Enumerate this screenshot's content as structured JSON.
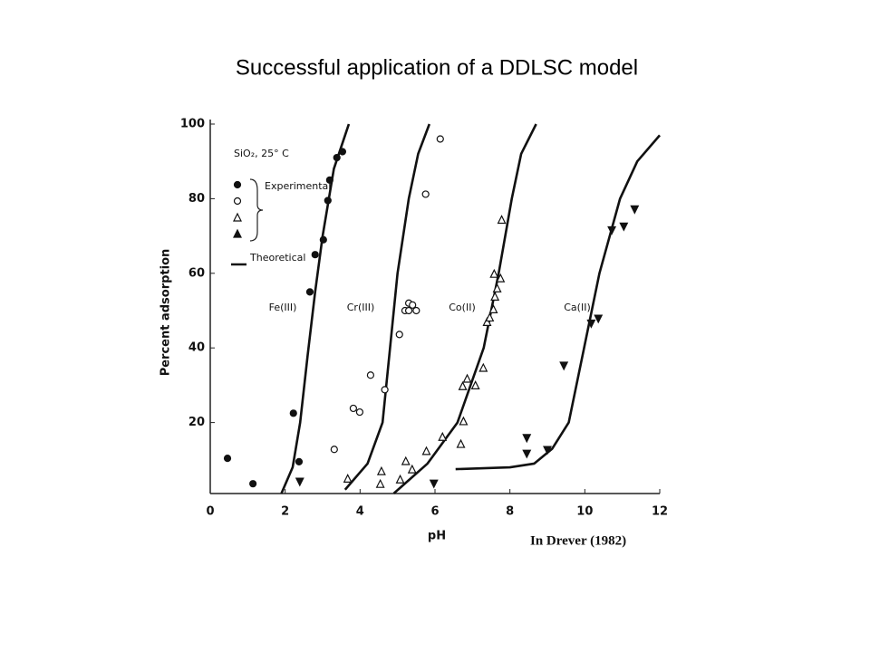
{
  "title": "Successful application of a DDLSC model",
  "chart_data": {
    "type": "scatter",
    "xlabel": "pH",
    "ylabel": "Percent adsorption",
    "source": "In Drever (1982)",
    "xlim": [
      0,
      12
    ],
    "ylim": [
      0,
      100
    ],
    "xticks": [
      0,
      2,
      4,
      6,
      8,
      10,
      12
    ],
    "yticks": [
      20,
      40,
      60,
      80,
      100
    ],
    "legend": {
      "title": "SiO₂, 25° C",
      "experimental": "Experimental",
      "theoretical": "Theoretical",
      "markers": [
        "circle-filled",
        "circle-open",
        "triangle-open",
        "triangle-filled"
      ]
    },
    "series": [
      {
        "name": "Fe(III)",
        "color": "#111111",
        "marker": "circle-filled",
        "x": [
          0.46,
          1.14,
          2.22,
          2.37,
          2.66,
          2.8,
          3.02,
          3.14,
          3.19,
          3.38,
          3.53
        ],
        "values": [
          10.4,
          3.6,
          22.5,
          9.5,
          55,
          65,
          69,
          79.5,
          85,
          91,
          92.6
        ],
        "curve_x": [
          1.9,
          2.2,
          2.4,
          2.6,
          2.8,
          3.0,
          3.3,
          3.7
        ],
        "curve_values": [
          1,
          8,
          20,
          38,
          55,
          70,
          88,
          100
        ]
      },
      {
        "name": "Cr(III)",
        "color": "#111111",
        "marker": "circle-open",
        "x": [
          3.31,
          3.82,
          3.99,
          4.28,
          4.66,
          5.05,
          5.2,
          5.3,
          5.4,
          5.3,
          5.5,
          5.75,
          6.14
        ],
        "values": [
          12.8,
          23.8,
          22.8,
          32.7,
          28.8,
          43.6,
          50,
          52,
          51.5,
          50,
          50,
          81.2,
          96
        ],
        "curve_x": [
          3.6,
          4.2,
          4.6,
          4.8,
          5.0,
          5.3,
          5.55,
          5.85
        ],
        "curve_values": [
          2,
          9,
          20,
          40,
          60,
          80,
          92,
          100
        ]
      },
      {
        "name": "Co(II)",
        "color": "#111111",
        "marker": "triangle-open",
        "x": [
          3.67,
          4.54,
          4.57,
          5.07,
          5.22,
          5.39,
          5.77,
          6.2,
          6.69,
          6.76,
          6.74,
          6.86,
          7.08,
          7.29,
          7.39,
          7.46,
          7.56,
          7.58,
          7.6,
          7.66,
          7.75,
          7.78
        ],
        "values": [
          5,
          3.6,
          7,
          4.8,
          9.7,
          7.5,
          12.4,
          16.2,
          14.3,
          20.4,
          29.8,
          31.8,
          30,
          34.7,
          47,
          48.2,
          50.4,
          59.9,
          53.8,
          56,
          58.7,
          74.4
        ],
        "curve_x": [
          4.9,
          5.8,
          6.6,
          7.3,
          7.7,
          8.05,
          8.3,
          8.7
        ],
        "curve_values": [
          1,
          9,
          20,
          40,
          60,
          80,
          92,
          100
        ]
      },
      {
        "name": "Ca(II)",
        "color": "#111111",
        "marker": "triangle-down-filled",
        "x": [
          2.39,
          5.97,
          8.45,
          8.45,
          9.0,
          9.44,
          10.17,
          10.36,
          10.72,
          11.04,
          11.33
        ],
        "values": [
          4.1,
          3.6,
          15.8,
          11.6,
          12.6,
          35.2,
          46.5,
          47.8,
          71.5,
          72.5,
          77.1
        ],
        "curve_x": [
          6.55,
          8.0,
          8.65,
          9.13,
          9.57,
          9.98,
          10.39,
          10.94,
          11.4,
          12
        ],
        "curve_values": [
          7.5,
          8,
          9,
          13,
          20,
          40,
          60,
          80,
          90,
          97
        ]
      }
    ]
  }
}
